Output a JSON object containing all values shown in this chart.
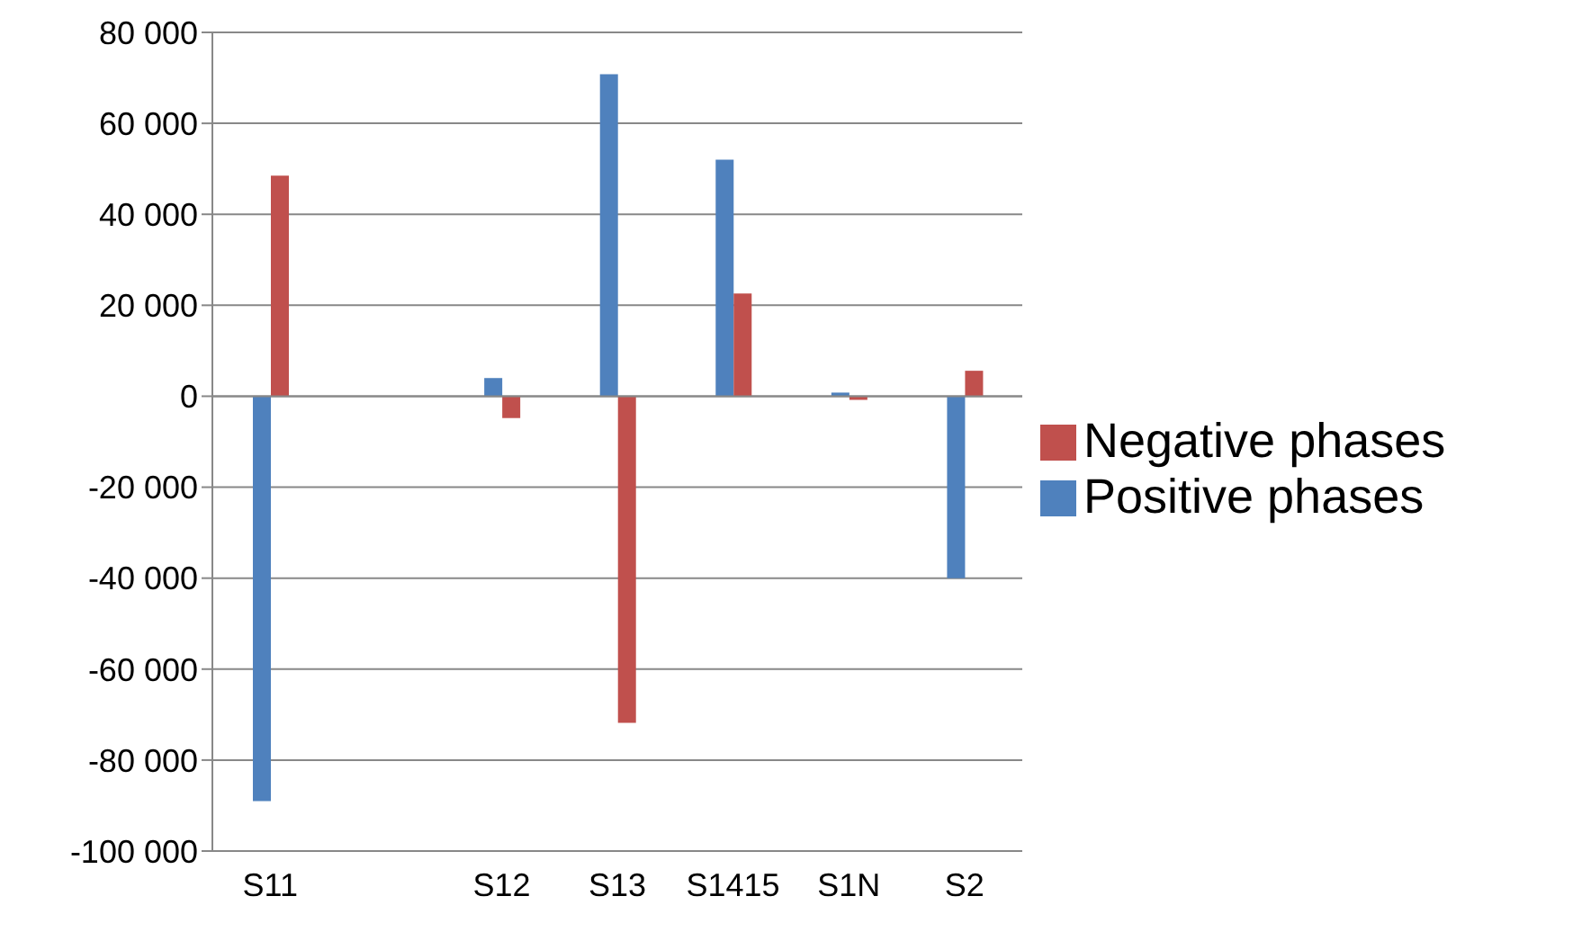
{
  "chart_data": {
    "type": "bar",
    "categories": [
      "S11",
      null,
      "S12",
      "S13",
      "S1415",
      "S1N",
      "S2"
    ],
    "series": [
      {
        "name": "Positive phases",
        "color": "#4f81bd",
        "values": [
          -89000,
          null,
          4000,
          70800,
          52000,
          800,
          -40000
        ]
      },
      {
        "name": "Negative phases",
        "color": "#c0504d",
        "values": [
          48500,
          null,
          -4800,
          -71800,
          22600,
          -800,
          5600
        ]
      }
    ],
    "ylim": [
      -100000,
      80000
    ],
    "yticks": [
      {
        "value": -100000,
        "label": "-100 000"
      },
      {
        "value": -80000,
        "label": "-80 000"
      },
      {
        "value": -60000,
        "label": "-60 000"
      },
      {
        "value": -40000,
        "label": "-40 000"
      },
      {
        "value": -20000,
        "label": "-20 000"
      },
      0,
      {
        "value": 20000,
        "label": "20 000"
      },
      {
        "value": 40000,
        "label": "40 000"
      },
      {
        "value": 60000,
        "label": "60 000"
      },
      {
        "value": 80000,
        "label": "80 000"
      }
    ],
    "grid": "y",
    "legend": "right"
  }
}
